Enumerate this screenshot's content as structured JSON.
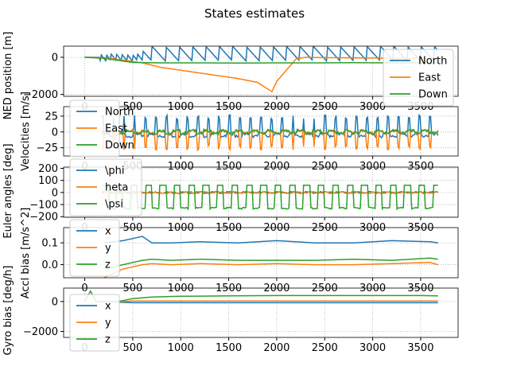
{
  "figure": {
    "title": "States estimates"
  },
  "colors": {
    "blue": "#1f77b4",
    "orange": "#ff7f0e",
    "green": "#2ca02c",
    "grid": "#b0b0b0"
  },
  "chart_data": [
    {
      "type": "line",
      "ylabel": "NED position [m]",
      "xlim": [
        -220,
        3890
      ],
      "ylim": [
        -2100,
        600
      ],
      "yticks": [
        0,
        -2000
      ],
      "ytick_labels": [
        "0",
        "−2000"
      ],
      "xticks": [
        0,
        500,
        1000,
        1500,
        2000,
        2500,
        3000,
        3500
      ],
      "xtick_labels": [
        "0",
        "500",
        "1000",
        "1500",
        "2000",
        "2500",
        "3000",
        "3500"
      ],
      "grid": true,
      "legend_placement": "right",
      "series": [
        {
          "name": "North",
          "color": "#1f77b4",
          "style": "sawtooth",
          "x": [
            0,
            3680
          ],
          "base": 0,
          "amp": 600
        },
        {
          "name": "East",
          "color": "#ff7f0e",
          "x": [
            0,
            200,
            400,
            600,
            800,
            1000,
            1200,
            1400,
            1600,
            1800,
            1950,
            2000,
            2200,
            2300,
            2400,
            2600,
            2800,
            3000,
            3200,
            3400,
            3680
          ],
          "y": [
            0,
            -20,
            -150,
            -300,
            -550,
            -700,
            -850,
            -1000,
            -1150,
            -1350,
            -1850,
            -1300,
            -100,
            0,
            -10,
            -20,
            -30,
            -40,
            -50,
            -60,
            -70
          ]
        },
        {
          "name": "Down",
          "color": "#2ca02c",
          "x": [
            0,
            200,
            400,
            500,
            800,
            1200,
            1600,
            2000,
            2400,
            2800,
            3200,
            3680
          ],
          "y": [
            0,
            -50,
            -200,
            -280,
            -300,
            -300,
            -310,
            -300,
            -300,
            -290,
            -300,
            -300
          ]
        }
      ]
    },
    {
      "type": "line",
      "ylabel": "Velocities [m/s]",
      "xlim": [
        -220,
        3890
      ],
      "ylim": [
        -38,
        40
      ],
      "yticks": [
        25,
        0,
        -25
      ],
      "ytick_labels": [
        "25",
        "0",
        "−25"
      ],
      "xticks": [
        0,
        500,
        1000,
        1500,
        2000,
        2500,
        3000,
        3500
      ],
      "xtick_labels": [
        "0",
        "500",
        "1000",
        "1500",
        "2000",
        "2500",
        "3000",
        "3500"
      ],
      "grid": true,
      "legend_placement": "left",
      "series": [
        {
          "name": "North",
          "color": "#1f77b4",
          "style": "pulse",
          "x": [
            180,
            3680
          ],
          "base": -5,
          "amp": 28
        },
        {
          "name": "East",
          "color": "#ff7f0e",
          "style": "pulse",
          "x": [
            180,
            3680
          ],
          "base": 0,
          "amp": -25
        },
        {
          "name": "Down",
          "color": "#2ca02c",
          "style": "noise",
          "x": [
            180,
            3680
          ],
          "base": 0,
          "amp": 2
        }
      ]
    },
    {
      "type": "line",
      "ylabel": "Euler angles [deg]",
      "xlim": [
        -220,
        3890
      ],
      "ylim": [
        -205,
        210
      ],
      "yticks": [
        200,
        100,
        0,
        -100,
        -200
      ],
      "ytick_labels": [
        "200",
        "100",
        "0",
        "−100",
        "−200"
      ],
      "xticks": [
        0,
        500,
        1000,
        1500,
        2000,
        2500,
        3000,
        3500
      ],
      "xtick_labels": [
        "0",
        "500",
        "1000",
        "1500",
        "2000",
        "2500",
        "3000",
        "3500"
      ],
      "grid": true,
      "legend_placement": "left",
      "series": [
        {
          "name": "\\phi",
          "color": "#1f77b4",
          "style": "noise",
          "x": [
            180,
            3680
          ],
          "base": 0,
          "amp": 4
        },
        {
          "name": "\theta",
          "color": "#ff7f0e",
          "style": "noise",
          "x": [
            180,
            3680
          ],
          "base": 0,
          "amp": 4
        },
        {
          "name": "\\psi",
          "color": "#2ca02c",
          "style": "square",
          "x": [
            180,
            3680
          ],
          "base": -130,
          "amp": 160
        }
      ]
    },
    {
      "type": "line",
      "ylabel": "Accl bias [m/s^2]",
      "xlim": [
        -220,
        3890
      ],
      "ylim": [
        -0.06,
        0.17
      ],
      "yticks": [
        0.1,
        0.0
      ],
      "ytick_labels": [
        "0.1",
        "0.0"
      ],
      "xticks": [
        0,
        500,
        1000,
        1500,
        2000,
        2500,
        3000,
        3500
      ],
      "xtick_labels": [
        "0",
        "500",
        "1000",
        "1500",
        "2000",
        "2500",
        "3000",
        "3500"
      ],
      "grid": true,
      "legend_placement": "left",
      "series": [
        {
          "name": "x",
          "color": "#1f77b4",
          "x": [
            200,
            400,
            500,
            600,
            700,
            900,
            1200,
            1600,
            2000,
            2400,
            2800,
            3200,
            3600,
            3680
          ],
          "y": [
            0.1,
            0.11,
            0.12,
            0.13,
            0.1,
            0.1,
            0.105,
            0.1,
            0.11,
            0.1,
            0.1,
            0.11,
            0.105,
            0.1
          ]
        },
        {
          "name": "y",
          "color": "#ff7f0e",
          "x": [
            200,
            300,
            400,
            500,
            600,
            700,
            900,
            1200,
            1600,
            2000,
            2400,
            2800,
            3200,
            3600,
            3680
          ],
          "y": [
            -0.06,
            -0.04,
            -0.02,
            -0.01,
            0.0,
            0.005,
            0.0,
            0.005,
            0.0,
            0.005,
            0.0,
            0.0,
            0.005,
            0.01,
            0.0
          ]
        },
        {
          "name": "z",
          "color": "#2ca02c",
          "x": [
            200,
            300,
            400,
            500,
            600,
            700,
            900,
            1200,
            1600,
            2000,
            2400,
            2800,
            3200,
            3600,
            3680
          ],
          "y": [
            -0.02,
            -0.01,
            0.0,
            0.01,
            0.02,
            0.025,
            0.02,
            0.025,
            0.02,
            0.02,
            0.02,
            0.025,
            0.02,
            0.03,
            0.025
          ]
        }
      ]
    },
    {
      "type": "line",
      "ylabel": "Gyro bias [deg/h]",
      "xlim": [
        -220,
        3890
      ],
      "ylim": [
        -2400,
        900
      ],
      "yticks": [
        0,
        -2000
      ],
      "ytick_labels": [
        "0",
        "−2000"
      ],
      "xticks": [
        0,
        500,
        1000,
        1500,
        2000,
        2500,
        3000,
        3500
      ],
      "xtick_labels": [
        "0",
        "500",
        "1000",
        "1500",
        "2000",
        "2500",
        "3000",
        "3500"
      ],
      "grid": true,
      "legend_placement": "left",
      "series": [
        {
          "name": "x",
          "color": "#1f77b4",
          "x": [
            350,
            500,
            1000,
            1500,
            2000,
            2500,
            3000,
            3500,
            3680
          ],
          "y": [
            -50,
            -80,
            -80,
            -80,
            -80,
            -80,
            -80,
            -80,
            -80
          ]
        },
        {
          "name": "y",
          "color": "#ff7f0e",
          "x": [
            350,
            500,
            1000,
            1500,
            2000,
            2500,
            3000,
            3500,
            3680
          ],
          "y": [
            -20,
            40,
            40,
            40,
            40,
            40,
            40,
            40,
            40
          ]
        },
        {
          "name": "z",
          "color": "#2ca02c",
          "x": [
            0,
            60,
            120,
            350,
            500,
            700,
            1000,
            1500,
            2000,
            2500,
            3000,
            3500,
            3680
          ],
          "y": [
            0,
            700,
            0,
            0,
            200,
            300,
            350,
            380,
            400,
            400,
            400,
            400,
            380
          ]
        }
      ]
    }
  ]
}
